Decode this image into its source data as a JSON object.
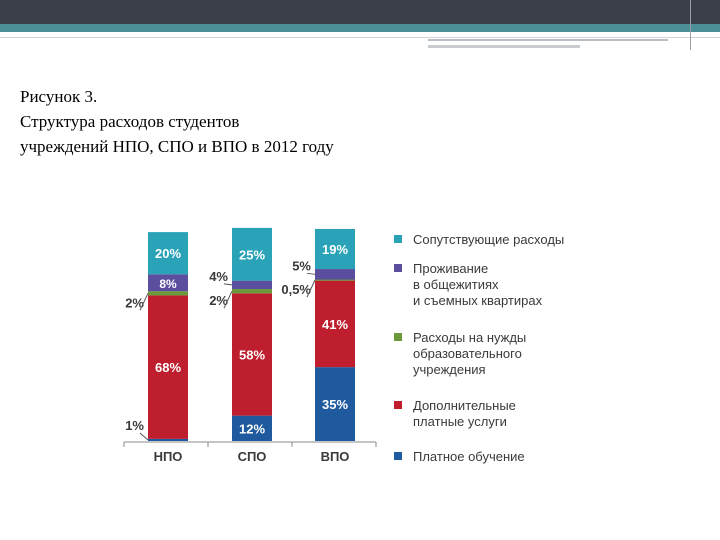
{
  "caption": {
    "line1": "Рисунок 3.",
    "line2": "Структура расходов студентов",
    "line3": "учреждений НПО, СПО и ВПО в 2012 году"
  },
  "chart_data": {
    "type": "bar",
    "stacked": true,
    "categories": [
      "НПО",
      "СПО",
      "ВПО"
    ],
    "series": [
      {
        "name": "Платное обучение",
        "color": "#1f5a9e",
        "values": [
          1,
          12,
          35
        ],
        "labels": [
          "1%",
          "12%",
          "35%"
        ]
      },
      {
        "name": "Дополнительные платные услуги",
        "color": "#be1e2d",
        "values": [
          68,
          58,
          41
        ],
        "labels": [
          "68%",
          "58%",
          "41%"
        ]
      },
      {
        "name": "Расходы на нужды образовательного учреждения",
        "color": "#6a9a3a",
        "values": [
          2,
          2,
          0.5
        ],
        "labels": [
          "2%",
          "2%",
          "0,5%"
        ]
      },
      {
        "name": "Проживание в общежитиях и съемных квартирах",
        "color": "#5b4e9e",
        "values": [
          8,
          4,
          5
        ],
        "labels": [
          "8%",
          "4%",
          "5%"
        ]
      },
      {
        "name": "Сопутствующие расходы",
        "color": "#2aa2b8",
        "values": [
          20,
          25,
          19
        ],
        "labels": [
          "20%",
          "25%",
          "19%"
        ]
      }
    ],
    "ylim": [
      0,
      100
    ],
    "legend": {
      "position": "right",
      "items": [
        {
          "lines": [
            "Сопутствующие расходы"
          ],
          "color": "#2aa2b8"
        },
        {
          "lines": [
            "Проживание",
            "в общежитиях",
            "и съемных квартирах"
          ],
          "color": "#5b4e9e"
        },
        {
          "lines": [
            "Расходы на нужды",
            "образовательного",
            "учреждения"
          ],
          "color": "#6a9a3a"
        },
        {
          "lines": [
            "Дополнительные",
            "платные услуги"
          ],
          "color": "#be1e2d"
        },
        {
          "lines": [
            "Платное обучение"
          ],
          "color": "#1f5a9e"
        }
      ]
    }
  }
}
